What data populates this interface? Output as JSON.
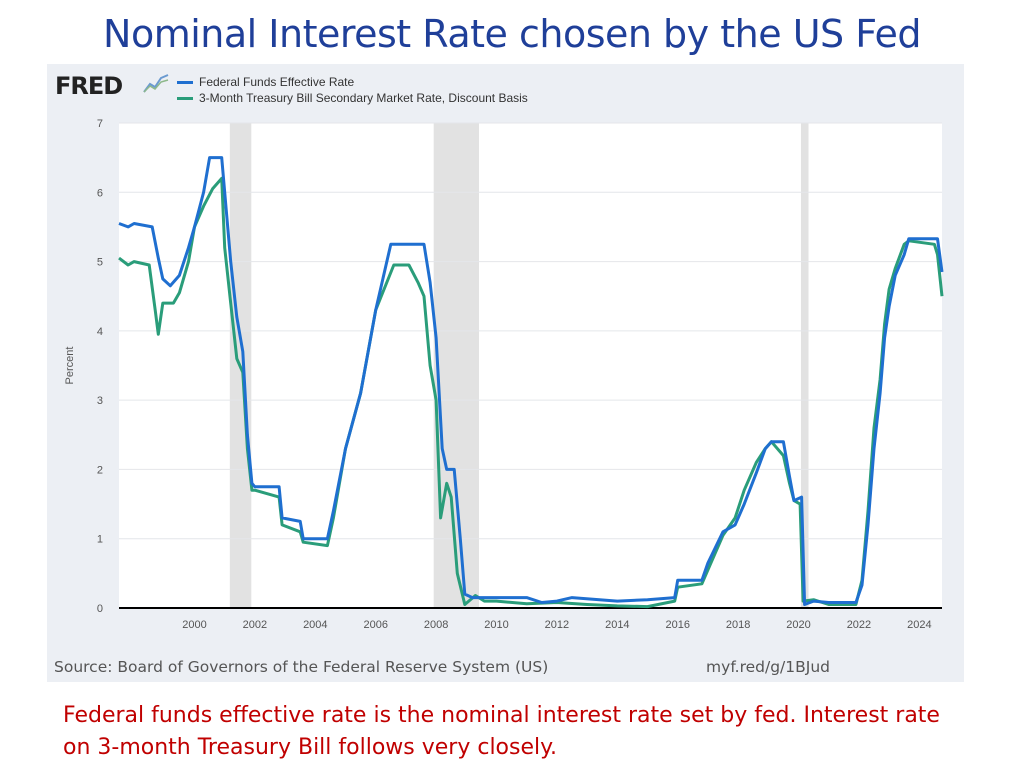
{
  "slide": {
    "title": "Nominal Interest Rate chosen by the US Fed",
    "caption": "Federal funds effective rate is the nominal interest rate set by fed. Interest rate on 3-month Treasury Bill follows very closely."
  },
  "fred": {
    "logo": "FRED",
    "source": "Source: Board of Governors of the Federal Reserve System (US)",
    "short_url": "myf.red/g/1BJud"
  },
  "chart_data": {
    "type": "line",
    "title": "",
    "xlabel": "",
    "ylabel": "Percent",
    "xlim": [
      1997.5,
      2024.75
    ],
    "ylim": [
      0,
      7
    ],
    "xticks": [
      2000,
      2002,
      2004,
      2006,
      2008,
      2010,
      2012,
      2014,
      2016,
      2018,
      2020,
      2022,
      2024
    ],
    "yticks": [
      0,
      1,
      2,
      3,
      4,
      5,
      6,
      7
    ],
    "grid": "horizontal",
    "legend_position": "top-left",
    "recessions": [
      [
        2001.17,
        2001.88
      ],
      [
        2007.92,
        2009.42
      ],
      [
        2020.08,
        2020.33
      ]
    ],
    "series": [
      {
        "name": "Federal Funds Effective Rate",
        "color": "#1f6fd0",
        "points": [
          [
            1997.5,
            5.55
          ],
          [
            1997.8,
            5.5
          ],
          [
            1998.0,
            5.55
          ],
          [
            1998.6,
            5.5
          ],
          [
            1998.8,
            5.05
          ],
          [
            1998.95,
            4.75
          ],
          [
            1999.2,
            4.65
          ],
          [
            1999.5,
            4.8
          ],
          [
            1999.8,
            5.2
          ],
          [
            2000.0,
            5.5
          ],
          [
            2000.3,
            6.0
          ],
          [
            2000.5,
            6.5
          ],
          [
            2000.9,
            6.5
          ],
          [
            2001.0,
            6.0
          ],
          [
            2001.2,
            5.0
          ],
          [
            2001.4,
            4.2
          ],
          [
            2001.6,
            3.7
          ],
          [
            2001.75,
            2.5
          ],
          [
            2001.9,
            1.8
          ],
          [
            2002.0,
            1.75
          ],
          [
            2002.8,
            1.75
          ],
          [
            2002.9,
            1.3
          ],
          [
            2003.5,
            1.25
          ],
          [
            2003.6,
            1.0
          ],
          [
            2004.4,
            1.0
          ],
          [
            2004.6,
            1.4
          ],
          [
            2005.0,
            2.3
          ],
          [
            2005.5,
            3.1
          ],
          [
            2006.0,
            4.3
          ],
          [
            2006.5,
            5.25
          ],
          [
            2007.6,
            5.25
          ],
          [
            2007.8,
            4.7
          ],
          [
            2008.0,
            3.9
          ],
          [
            2008.2,
            2.3
          ],
          [
            2008.35,
            2.0
          ],
          [
            2008.6,
            2.0
          ],
          [
            2008.8,
            1.0
          ],
          [
            2008.95,
            0.2
          ],
          [
            2009.2,
            0.15
          ],
          [
            2010.0,
            0.15
          ],
          [
            2011.0,
            0.15
          ],
          [
            2011.5,
            0.08
          ],
          [
            2012.0,
            0.1
          ],
          [
            2012.5,
            0.15
          ],
          [
            2014.0,
            0.1
          ],
          [
            2015.0,
            0.12
          ],
          [
            2015.9,
            0.15
          ],
          [
            2016.0,
            0.4
          ],
          [
            2016.8,
            0.4
          ],
          [
            2017.0,
            0.65
          ],
          [
            2017.5,
            1.1
          ],
          [
            2017.9,
            1.2
          ],
          [
            2018.2,
            1.5
          ],
          [
            2018.6,
            1.95
          ],
          [
            2018.9,
            2.3
          ],
          [
            2019.1,
            2.4
          ],
          [
            2019.5,
            2.4
          ],
          [
            2019.7,
            1.9
          ],
          [
            2019.85,
            1.55
          ],
          [
            2020.1,
            1.6
          ],
          [
            2020.2,
            0.05
          ],
          [
            2020.5,
            0.1
          ],
          [
            2021.0,
            0.08
          ],
          [
            2021.5,
            0.08
          ],
          [
            2021.9,
            0.08
          ],
          [
            2022.1,
            0.33
          ],
          [
            2022.3,
            1.2
          ],
          [
            2022.5,
            2.3
          ],
          [
            2022.7,
            3.1
          ],
          [
            2022.85,
            3.9
          ],
          [
            2023.0,
            4.35
          ],
          [
            2023.2,
            4.8
          ],
          [
            2023.5,
            5.1
          ],
          [
            2023.65,
            5.33
          ],
          [
            2024.6,
            5.33
          ],
          [
            2024.75,
            4.85
          ]
        ]
      },
      {
        "name": "3-Month Treasury Bill Secondary Market Rate, Discount Basis",
        "color": "#2a9d7a",
        "points": [
          [
            1997.5,
            5.05
          ],
          [
            1997.8,
            4.95
          ],
          [
            1998.0,
            5.0
          ],
          [
            1998.5,
            4.95
          ],
          [
            1998.7,
            4.3
          ],
          [
            1998.8,
            3.95
          ],
          [
            1998.95,
            4.4
          ],
          [
            1999.3,
            4.4
          ],
          [
            1999.5,
            4.55
          ],
          [
            1999.8,
            5.0
          ],
          [
            2000.0,
            5.5
          ],
          [
            2000.3,
            5.8
          ],
          [
            2000.6,
            6.05
          ],
          [
            2000.9,
            6.2
          ],
          [
            2001.0,
            5.2
          ],
          [
            2001.2,
            4.4
          ],
          [
            2001.4,
            3.6
          ],
          [
            2001.6,
            3.4
          ],
          [
            2001.75,
            2.3
          ],
          [
            2001.9,
            1.7
          ],
          [
            2002.0,
            1.7
          ],
          [
            2002.8,
            1.6
          ],
          [
            2002.9,
            1.2
          ],
          [
            2003.5,
            1.1
          ],
          [
            2003.6,
            0.95
          ],
          [
            2004.4,
            0.9
          ],
          [
            2004.6,
            1.3
          ],
          [
            2005.0,
            2.3
          ],
          [
            2005.5,
            3.1
          ],
          [
            2006.0,
            4.3
          ],
          [
            2006.6,
            4.95
          ],
          [
            2007.1,
            4.95
          ],
          [
            2007.4,
            4.7
          ],
          [
            2007.6,
            4.5
          ],
          [
            2007.8,
            3.5
          ],
          [
            2008.0,
            3.0
          ],
          [
            2008.15,
            1.3
          ],
          [
            2008.35,
            1.8
          ],
          [
            2008.5,
            1.6
          ],
          [
            2008.7,
            0.5
          ],
          [
            2008.95,
            0.05
          ],
          [
            2009.3,
            0.18
          ],
          [
            2009.6,
            0.1
          ],
          [
            2010.0,
            0.1
          ],
          [
            2011.0,
            0.06
          ],
          [
            2012.0,
            0.08
          ],
          [
            2013.0,
            0.05
          ],
          [
            2014.0,
            0.03
          ],
          [
            2015.0,
            0.02
          ],
          [
            2015.9,
            0.1
          ],
          [
            2016.0,
            0.3
          ],
          [
            2016.8,
            0.35
          ],
          [
            2017.0,
            0.55
          ],
          [
            2017.5,
            1.05
          ],
          [
            2017.9,
            1.3
          ],
          [
            2018.2,
            1.7
          ],
          [
            2018.6,
            2.1
          ],
          [
            2018.9,
            2.3
          ],
          [
            2019.1,
            2.4
          ],
          [
            2019.5,
            2.2
          ],
          [
            2019.7,
            1.8
          ],
          [
            2019.85,
            1.55
          ],
          [
            2020.05,
            1.5
          ],
          [
            2020.15,
            0.1
          ],
          [
            2020.5,
            0.12
          ],
          [
            2021.0,
            0.05
          ],
          [
            2021.5,
            0.05
          ],
          [
            2021.9,
            0.05
          ],
          [
            2022.1,
            0.4
          ],
          [
            2022.3,
            1.4
          ],
          [
            2022.5,
            2.6
          ],
          [
            2022.7,
            3.3
          ],
          [
            2022.85,
            4.1
          ],
          [
            2023.0,
            4.6
          ],
          [
            2023.2,
            4.9
          ],
          [
            2023.5,
            5.25
          ],
          [
            2023.65,
            5.3
          ],
          [
            2024.5,
            5.25
          ],
          [
            2024.6,
            5.1
          ],
          [
            2024.75,
            4.5
          ]
        ]
      }
    ]
  }
}
